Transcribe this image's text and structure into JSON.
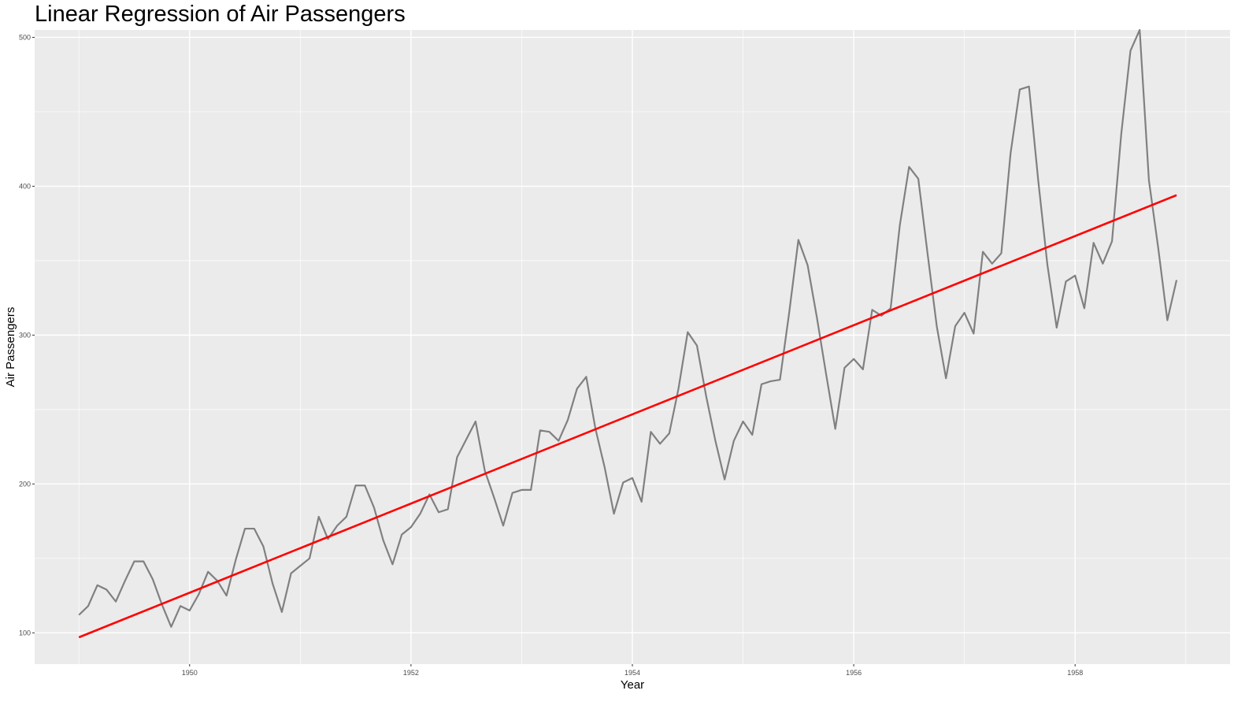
{
  "chart_data": {
    "type": "line",
    "title": "Linear Regression of Air Passengers",
    "xlabel": "Year",
    "ylabel": "Air Passengers",
    "xlim": [
      1948.6,
      1959.4
    ],
    "ylim": [
      79,
      505
    ],
    "x_ticks": [
      1950,
      1952,
      1954,
      1956,
      1958
    ],
    "y_ticks": [
      100,
      200,
      300,
      400,
      500
    ],
    "grid": true,
    "background": "#ebebeb",
    "grid_color": "#ffffff",
    "series": [
      {
        "kind": "observed",
        "color": "#808080",
        "x_start": 1949,
        "x_step": 0.0833333,
        "values": [
          112,
          118,
          132,
          129,
          121,
          135,
          148,
          148,
          136,
          119,
          104,
          118,
          115,
          126,
          141,
          135,
          125,
          149,
          170,
          170,
          158,
          133,
          114,
          140,
          145,
          150,
          178,
          163,
          172,
          178,
          199,
          199,
          184,
          162,
          146,
          166,
          171,
          180,
          193,
          181,
          183,
          218,
          230,
          242,
          209,
          191,
          172,
          194,
          196,
          196,
          236,
          235,
          229,
          243,
          264,
          272,
          237,
          211,
          180,
          201,
          204,
          188,
          235,
          227,
          234,
          264,
          302,
          293,
          259,
          229,
          203,
          229,
          242,
          233,
          267,
          269,
          270,
          315,
          364,
          347,
          312,
          274,
          237,
          278,
          284,
          277,
          317,
          313,
          318,
          374,
          413,
          405,
          355,
          306,
          271,
          306,
          315,
          301,
          356,
          348,
          355,
          422,
          465,
          467,
          404,
          347,
          305,
          336,
          340,
          318,
          362,
          348,
          363,
          435,
          491,
          505,
          404,
          359,
          310,
          337
        ]
      },
      {
        "kind": "fitted",
        "color": "#ff0000",
        "x": [
          1949.0,
          1958.9167
        ],
        "y": [
          97,
          394
        ]
      }
    ]
  }
}
